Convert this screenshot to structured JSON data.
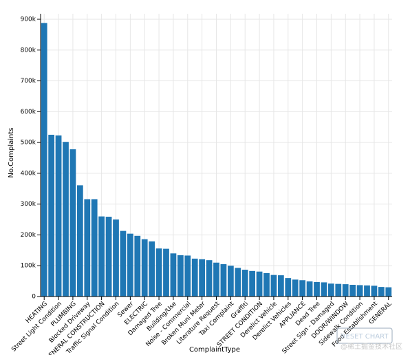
{
  "chart_data": {
    "type": "bar",
    "x_label": "ComplaintType",
    "y_label": "No.Complaints",
    "color": "#1f77b4",
    "grid": true,
    "button": "RESET CHART",
    "watermark": "@稀土掘金技术社区",
    "categories": [
      "HEATING",
      null,
      "Street Light Condition",
      null,
      "PLUMBING",
      null,
      "Blocked Driveway",
      null,
      "GENERAL CONSTRUCTION",
      null,
      "Traffic Signal Condition",
      null,
      "Sewer",
      null,
      "ELECTRIC",
      null,
      "Damaged Tree",
      null,
      "Building/Use",
      null,
      "Noise - Commercial",
      null,
      "Broken Muni Meter",
      null,
      "Literature Request",
      null,
      "Taxi Complaint",
      null,
      "Graffiti",
      null,
      "STREET CONDITION",
      null,
      "Derelict Vehicle",
      null,
      "Derelict Vehicles",
      null,
      "APPLIANCE",
      null,
      "Dead Tree",
      null,
      "Street Sign - Damaged",
      null,
      "DOOR/WINDOW",
      null,
      "Sidewalk Condition",
      null,
      "Food Establishment",
      null,
      "GENERAL"
    ],
    "values": [
      888000,
      525000,
      523000,
      502000,
      478000,
      361000,
      316000,
      316000,
      260000,
      259000,
      250000,
      213000,
      204000,
      197000,
      186000,
      179000,
      156000,
      155000,
      140000,
      134000,
      133000,
      123000,
      121000,
      118000,
      110000,
      105000,
      100000,
      93000,
      87000,
      83000,
      81000,
      76000,
      70000,
      69000,
      60000,
      55000,
      53000,
      49000,
      47000,
      46000,
      42000,
      41000,
      40000,
      38000,
      37000,
      36000,
      35000,
      31000,
      30000
    ],
    "ylim": [
      0,
      900000
    ],
    "yticks": [
      0,
      {
        "value": 100000,
        "label": "100k"
      },
      {
        "value": 200000,
        "label": "200k"
      },
      {
        "value": 300000,
        "label": "300k"
      },
      {
        "value": 400000,
        "label": "400k"
      },
      {
        "value": 500000,
        "label": "500k"
      },
      {
        "value": 600000,
        "label": "600k"
      },
      {
        "value": 700000,
        "label": "700k"
      },
      {
        "value": 800000,
        "label": "800k"
      },
      {
        "value": 900000,
        "label": "900k"
      }
    ]
  }
}
